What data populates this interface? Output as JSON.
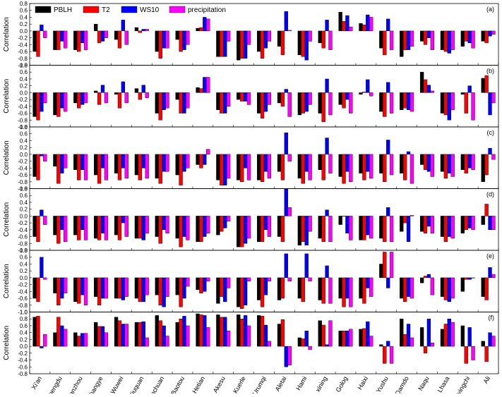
{
  "chart_data": [
    {
      "type": "bar",
      "annotation": "(a)",
      "y_label": "Correlation",
      "legend": "upper left",
      "ylim": [
        -1,
        0.8
      ],
      "yticks": [
        {
          "value": -1,
          "label": "-1.0"
        },
        -0.8,
        -0.6,
        -0.4,
        -0.2,
        {
          "value": 0,
          "label": "0.0"
        },
        0.2,
        0.4,
        0.6,
        0.8
      ],
      "series": [
        {
          "name": "PBLH",
          "color": "#000000",
          "values": [
            -0.6,
            -0.55,
            -0.55,
            0.2,
            -0.25,
            0.1,
            -0.6,
            -0.25,
            0.08,
            -0.75,
            -0.85,
            -0.6,
            -0.45,
            -0.7,
            -0.35,
            0.55,
            0.22,
            -0.5,
            -0.75,
            -0.3,
            -0.55,
            -0.45,
            -0.3
          ]
        },
        {
          "name": "T2",
          "color": "#ff0000",
          "values": [
            -0.75,
            -0.55,
            -0.6,
            -0.35,
            -0.5,
            -0.05,
            -0.8,
            -0.6,
            0.1,
            -0.75,
            -0.8,
            -0.8,
            -0.7,
            -0.75,
            -0.5,
            0.28,
            0.18,
            -0.7,
            -0.55,
            -0.4,
            -0.6,
            -0.3,
            -0.35
          ]
        },
        {
          "name": "WS10",
          "color": "#0000ff",
          "values": [
            0.18,
            -0.3,
            -0.35,
            -0.3,
            0.32,
            0.05,
            -0.5,
            -0.55,
            0.4,
            -0.75,
            -0.8,
            -0.5,
            0.57,
            -0.85,
            0.32,
            0.45,
            0.47,
            0.35,
            -0.55,
            -0.2,
            -0.65,
            -0.35,
            -0.15
          ]
        },
        {
          "name": "precipitation",
          "color": "#ff00ff",
          "values": [
            -0.2,
            -0.5,
            -0.55,
            -0.2,
            -0.4,
            0.05,
            -0.5,
            -0.4,
            0.35,
            -0.3,
            -0.4,
            -0.3,
            0.02,
            -0.3,
            -0.55,
            0.12,
            0.4,
            -0.55,
            -0.45,
            -0.55,
            -0.55,
            -0.5,
            -0.1
          ]
        }
      ]
    },
    {
      "type": "bar",
      "annotation": "(b)",
      "y_label": "Correlation",
      "ylim": [
        -1,
        0.8
      ],
      "yticks": [
        {
          "value": -1,
          "label": "-1.0"
        },
        -0.8,
        -0.6,
        -0.4,
        -0.2,
        {
          "value": 0,
          "label": "0.0"
        },
        0.2,
        0.4,
        0.6,
        0.8
      ],
      "series": [
        {
          "color": "#000000",
          "values": [
            -0.7,
            -0.65,
            -0.3,
            0.05,
            -0.05,
            0.12,
            -0.6,
            -0.2,
            0.15,
            -0.5,
            -0.2,
            -0.6,
            -0.3,
            -0.65,
            -0.6,
            -0.35,
            -0.05,
            -0.55,
            -0.5,
            0.6,
            -0.6,
            -0.05,
            0.42
          ]
        },
        {
          "color": "#ff0000",
          "values": [
            -0.8,
            -0.7,
            -0.45,
            -0.35,
            -0.45,
            -0.2,
            -0.8,
            -0.6,
            0.12,
            -0.6,
            -0.25,
            -0.75,
            -0.4,
            -0.6,
            -0.85,
            -0.45,
            0.02,
            -0.7,
            -0.45,
            0.38,
            -0.65,
            -0.6,
            0.5
          ]
        },
        {
          "color": "#0000ff",
          "values": [
            -0.55,
            -0.45,
            -0.35,
            0.22,
            0.32,
            0.22,
            -0.5,
            -0.6,
            0.45,
            -0.6,
            -0.25,
            -0.55,
            0.1,
            -0.55,
            0.4,
            -0.2,
            0.38,
            0.3,
            -0.5,
            0.22,
            -0.8,
            0.2,
            -0.65
          ]
        },
        {
          "color": "#ff00ff",
          "values": [
            -0.3,
            -0.55,
            -0.3,
            -0.3,
            -0.3,
            -0.15,
            -0.45,
            -0.45,
            0.45,
            -0.4,
            -0.35,
            -0.35,
            -0.7,
            -0.35,
            -0.65,
            -0.6,
            -0.1,
            -0.6,
            -0.55,
            0.05,
            -0.5,
            -0.8,
            -0.3
          ]
        }
      ]
    },
    {
      "type": "bar",
      "annotation": "(c)",
      "y_label": "Correlation",
      "ylim": [
        -1,
        0.8
      ],
      "yticks": [
        {
          "value": -1,
          "label": "-1.0"
        },
        -0.8,
        -0.6,
        -0.4,
        -0.2,
        {
          "value": 0,
          "label": "0.0"
        },
        0.2,
        0.4,
        0.6,
        0.8
      ],
      "series": [
        {
          "color": "#000000",
          "values": [
            -0.65,
            -0.35,
            -0.45,
            -0.6,
            -0.55,
            -0.6,
            -0.7,
            -0.6,
            -0.3,
            -0.75,
            -0.75,
            -0.75,
            -0.5,
            -0.7,
            -0.45,
            -0.65,
            -0.55,
            -0.55,
            -0.55,
            -0.3,
            -0.5,
            -0.45,
            -0.8
          ]
        },
        {
          "color": "#ff0000",
          "values": [
            -0.75,
            -0.85,
            -0.75,
            -0.85,
            -0.75,
            -0.75,
            -0.85,
            -0.9,
            -0.4,
            -0.9,
            -0.8,
            -0.8,
            -0.75,
            -0.85,
            -0.75,
            -0.85,
            -0.75,
            -0.8,
            -0.75,
            -0.45,
            -0.7,
            -0.55,
            -0.6
          ]
        },
        {
          "color": "#0000ff",
          "values": [
            -0.05,
            -0.55,
            -0.45,
            -0.4,
            -0.4,
            -0.4,
            -0.5,
            -0.5,
            -0.3,
            -0.9,
            -0.4,
            -0.5,
            0.63,
            -0.5,
            0.48,
            -0.5,
            -0.5,
            0.42,
            0.08,
            -0.5,
            -0.55,
            -0.4,
            0.18
          ]
        },
        {
          "color": "#ff00ff",
          "values": [
            -0.2,
            -0.4,
            -0.75,
            -0.75,
            -0.7,
            -0.7,
            -0.5,
            -0.4,
            0.15,
            -0.7,
            -0.75,
            -0.7,
            -0.2,
            -0.75,
            -0.55,
            -0.8,
            -0.7,
            -0.6,
            -0.85,
            -0.65,
            -0.65,
            -0.45,
            -0.15
          ]
        }
      ]
    },
    {
      "type": "bar",
      "annotation": "(d)",
      "y_label": "Correlation",
      "ylim": [
        -1,
        0.8
      ],
      "yticks": [
        {
          "value": -1,
          "label": "-1.0"
        },
        -0.8,
        -0.6,
        -0.4,
        -0.2,
        {
          "value": 0,
          "label": "0.0"
        },
        0.2,
        0.4,
        0.6,
        0.8
      ],
      "series": [
        {
          "color": "#000000",
          "values": [
            -0.6,
            -0.55,
            -0.55,
            -0.65,
            -0.55,
            -0.65,
            -0.6,
            -0.65,
            -0.75,
            -0.55,
            -0.9,
            -0.75,
            -0.6,
            -0.85,
            -0.65,
            -0.25,
            -0.7,
            -0.65,
            -0.45,
            -0.45,
            -0.6,
            -0.5,
            -0.25
          ]
        },
        {
          "color": "#ff0000",
          "values": [
            -0.75,
            -0.8,
            -0.7,
            -0.7,
            -0.7,
            -0.65,
            -0.8,
            -0.9,
            -0.75,
            -0.45,
            -0.9,
            -0.75,
            -0.75,
            -0.75,
            -0.75,
            0.0,
            -0.7,
            -0.75,
            -0.2,
            -0.5,
            -0.75,
            -0.4,
            0.35
          ]
        },
        {
          "color": "#0000ff",
          "values": [
            0.18,
            -0.4,
            -0.4,
            -0.5,
            -0.2,
            -0.7,
            -0.4,
            -0.6,
            -0.6,
            -0.35,
            -0.8,
            -0.4,
            0.8,
            -0.85,
            0.18,
            -0.5,
            -0.55,
            0.25,
            -0.75,
            -0.3,
            -0.6,
            -0.35,
            -0.4
          ]
        },
        {
          "color": "#ff00ff",
          "values": [
            -0.25,
            -0.75,
            -0.7,
            -0.7,
            -0.6,
            -0.5,
            -0.5,
            -0.7,
            -0.5,
            -0.15,
            -0.65,
            -0.6,
            0.25,
            -0.45,
            -0.75,
            -0.7,
            -0.65,
            -0.75,
            0.02,
            -0.5,
            -0.65,
            -0.4,
            -0.4
          ]
        }
      ]
    },
    {
      "type": "bar",
      "annotation": "(e)",
      "y_label": "Correlation",
      "ylim": [
        -1,
        0.8
      ],
      "yticks": [
        {
          "value": -1,
          "label": "-1.0"
        },
        -0.8,
        -0.6,
        -0.4,
        -0.2,
        {
          "value": 0,
          "label": "0.0"
        },
        0.2,
        0.4,
        0.6,
        0.8
      ],
      "series": [
        {
          "color": "#000000",
          "values": [
            -0.6,
            -0.45,
            -0.7,
            -0.55,
            -0.6,
            -0.6,
            -0.5,
            -0.5,
            -0.35,
            -0.75,
            -0.85,
            -0.65,
            -0.65,
            -0.6,
            -0.65,
            -0.6,
            -0.6,
            0.4,
            -0.6,
            -0.15,
            -0.55,
            -0.4,
            -0.55
          ]
        },
        {
          "color": "#ff0000",
          "values": [
            -0.7,
            -0.8,
            -0.75,
            -0.8,
            -0.6,
            -0.7,
            -0.8,
            -0.85,
            -0.45,
            -0.55,
            -0.9,
            -0.85,
            -0.6,
            -0.7,
            -0.75,
            -0.85,
            -0.75,
            0.75,
            -0.7,
            0.05,
            -0.65,
            -0.05,
            -0.65
          ]
        },
        {
          "color": "#0000ff",
          "values": [
            0.6,
            -0.6,
            -0.5,
            -0.6,
            -0.65,
            -0.7,
            -0.85,
            -0.6,
            -0.4,
            -0.7,
            -0.8,
            -0.5,
            0.7,
            0.7,
            0.35,
            -0.6,
            -0.3,
            -0.3,
            -0.55,
            0.1,
            -0.7,
            -0.05,
            0.3
          ]
        },
        {
          "color": "#ff00ff",
          "values": [
            -0.05,
            -0.45,
            -0.8,
            -0.6,
            -0.55,
            -0.5,
            -0.55,
            -0.25,
            -0.1,
            -0.3,
            -0.1,
            -0.1,
            -0.1,
            -0.1,
            -0.75,
            -0.85,
            -0.55,
            0.75,
            -0.6,
            -0.5,
            -0.6,
            0.0,
            0.1
          ]
        }
      ]
    },
    {
      "type": "bar",
      "annotation": "(f)",
      "y_label": "Correlation",
      "categories": [
        "Xi'an",
        "Chengdu",
        "Lanzhou",
        "Zhangye",
        "Wuwei",
        "Jiuquan",
        "Yinchuan",
        "Baotou",
        "Hetian",
        "Akesu",
        "Kuerle",
        "Urumqi",
        "Aletai",
        "Hami",
        "xining",
        "Golog",
        "Haixi",
        "Yushu",
        "Qamdo",
        "Naqu",
        "Lhasa",
        "Nyingchi",
        "Ali"
      ],
      "ylim": [
        -0.8,
        1
      ],
      "yticks": [
        -0.8,
        -0.6,
        -0.4,
        -0.2,
        {
          "value": 0,
          "label": "0.0"
        },
        0.2,
        0.4,
        0.6,
        0.8,
        {
          "value": 1,
          "label": "1.0"
        }
      ],
      "series": [
        {
          "color": "#000000",
          "values": [
            0.85,
            0.4,
            0.4,
            0.7,
            0.85,
            0.7,
            0.9,
            0.7,
            0.95,
            0.92,
            0.92,
            0.9,
            0.65,
            0.25,
            0.75,
            0.45,
            0.5,
            0.05,
            0.8,
            0.55,
            0.5,
            0.6,
            0.15
          ]
        },
        {
          "color": "#ff0000",
          "values": [
            0.88,
            0.85,
            0.3,
            0.58,
            0.75,
            0.7,
            0.75,
            0.8,
            0.92,
            0.85,
            0.8,
            0.88,
            0.78,
            0.22,
            0.62,
            0.45,
            0.52,
            -0.5,
            0.35,
            -0.2,
            0.65,
            -0.5,
            -0.45
          ]
        },
        {
          "color": "#0000ff",
          "values": [
            -0.05,
            0.6,
            0.38,
            0.58,
            0.65,
            0.72,
            0.6,
            0.88,
            0.9,
            0.85,
            0.9,
            0.62,
            -0.6,
            0.45,
            0.05,
            0.45,
            0.72,
            0.15,
            0.65,
            0.8,
            0.8,
            0.55,
            0.4
          ]
        },
        {
          "color": "#ff00ff",
          "values": [
            0.35,
            0.5,
            0.38,
            0.4,
            0.65,
            0.25,
            0.3,
            0.6,
            0.55,
            0.45,
            0.6,
            0.15,
            -0.55,
            -0.1,
            0.75,
            0.5,
            0.3,
            -0.5,
            0.25,
            0.1,
            0.7,
            -0.4,
            0.3
          ]
        }
      ]
    }
  ]
}
